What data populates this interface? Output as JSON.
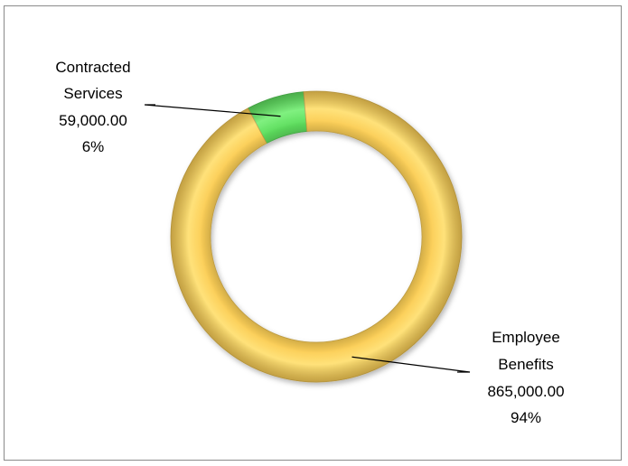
{
  "chart_data": {
    "type": "pie",
    "style": "doughnut",
    "title": "",
    "slices": [
      {
        "label_lines": [
          "Contracted",
          "Services",
          "59,000.00",
          "6%"
        ],
        "category": "Contracted Services",
        "value": 59000,
        "value_text": "59,000.00",
        "percent_text": "6%",
        "color": "#5fe05f"
      },
      {
        "label_lines": [
          "Employee",
          "Benefits",
          "865,000.00",
          "94%"
        ],
        "category": "Employee Benefits",
        "value": 865000,
        "value_text": "865,000.00",
        "percent_text": "94%",
        "color": "#fccf57"
      }
    ],
    "legend": "none",
    "grid": false
  }
}
